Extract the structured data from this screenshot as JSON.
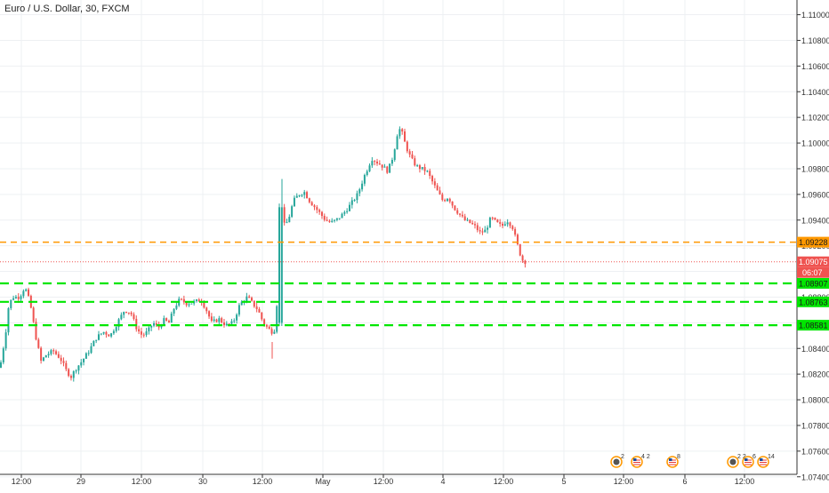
{
  "chart_data": {
    "type": "candlestick",
    "title": "Euro / U.S. Dollar, 30, FXCM",
    "colors": {
      "up": "#26a69a",
      "down": "#ef5350",
      "grid": "#eef0f3",
      "axis": "#333333"
    },
    "yticks": [
      "1.07400",
      "1.07600",
      "1.07800",
      "1.08000",
      "1.08200",
      "1.08400",
      "1.08600",
      "1.08800",
      "1.09000",
      "1.09200",
      "1.09400",
      "1.09600",
      "1.09800",
      "1.10000",
      "1.10200",
      "1.10400",
      "1.10600",
      "1.10800",
      "1.11000"
    ],
    "ylim": [
      1.0735,
      1.11
    ],
    "xticks": [
      {
        "label": "12:00",
        "px": 24
      },
      {
        "label": "29",
        "px": 91
      },
      {
        "label": "12:00",
        "px": 159
      },
      {
        "label": "30",
        "px": 228
      },
      {
        "label": "12:00",
        "px": 295
      },
      {
        "label": "May",
        "px": 363
      },
      {
        "label": "12:00",
        "px": 431
      },
      {
        "label": "4",
        "px": 498
      },
      {
        "label": "12:00",
        "px": 566
      },
      {
        "label": "5",
        "px": 634
      },
      {
        "label": "12:00",
        "px": 701
      },
      {
        "label": "6",
        "px": 770
      },
      {
        "label": "12:00",
        "px": 837
      }
    ],
    "levels": [
      {
        "value": 1.09228,
        "label": "1.09228",
        "style": "orange-dashed",
        "color": "#ff9800"
      },
      {
        "value": 1.09075,
        "label": "1.09075",
        "style": "red-dotted",
        "color": "#ef5350"
      },
      {
        "value": 1.08907,
        "label": "1.08907",
        "style": "green-dashed",
        "color": "#00e600"
      },
      {
        "value": 1.08763,
        "label": "1.08763",
        "style": "green-dashed",
        "color": "#00e600"
      },
      {
        "value": 1.08581,
        "label": "1.08581",
        "style": "green-dashed",
        "color": "#00e600"
      }
    ],
    "countdown": "06:07",
    "events": [
      {
        "type": "earnings",
        "count": "2",
        "px": 693
      },
      {
        "type": "us-flag",
        "count": "4 2",
        "px": 716
      },
      {
        "type": "us-flag",
        "count": "8",
        "px": 756
      },
      {
        "type": "earnings",
        "count": "2 2",
        "px": 824
      },
      {
        "type": "us-flag",
        "count": "6",
        "px": 841
      },
      {
        "type": "us-flag",
        "count": "14",
        "px": 858
      }
    ],
    "path": [
      [
        0,
        1.0825
      ],
      [
        6,
        1.085
      ],
      [
        10,
        1.0875
      ],
      [
        15,
        1.088
      ],
      [
        22,
        1.088
      ],
      [
        28,
        1.0888
      ],
      [
        34,
        1.0875
      ],
      [
        40,
        1.085
      ],
      [
        46,
        1.083
      ],
      [
        52,
        1.0835
      ],
      [
        60,
        1.0838
      ],
      [
        68,
        1.0832
      ],
      [
        75,
        1.0822
      ],
      [
        80,
        1.0818
      ],
      [
        85,
        1.0824
      ],
      [
        92,
        1.083
      ],
      [
        100,
        1.0838
      ],
      [
        108,
        1.0848
      ],
      [
        116,
        1.0853
      ],
      [
        124,
        1.085
      ],
      [
        132,
        1.086
      ],
      [
        140,
        1.087
      ],
      [
        147,
        1.0868
      ],
      [
        154,
        1.0855
      ],
      [
        160,
        1.085
      ],
      [
        166,
        1.0853
      ],
      [
        172,
        1.086
      ],
      [
        178,
        1.0856
      ],
      [
        184,
        1.0862
      ],
      [
        190,
        1.086
      ],
      [
        196,
        1.0872
      ],
      [
        202,
        1.0878
      ],
      [
        210,
        1.0875
      ],
      [
        218,
        1.0876
      ],
      [
        226,
        1.0878
      ],
      [
        232,
        1.087
      ],
      [
        238,
        1.086
      ],
      [
        246,
        1.0863
      ],
      [
        254,
        1.0858
      ],
      [
        262,
        1.086
      ],
      [
        270,
        1.0875
      ],
      [
        278,
        1.088
      ],
      [
        284,
        1.0875
      ],
      [
        290,
        1.087
      ],
      [
        296,
        1.086
      ],
      [
        302,
        1.0855
      ],
      [
        308,
        1.0852
      ],
      [
        312,
        1.088
      ],
      [
        316,
        1.095
      ],
      [
        320,
        1.0935
      ],
      [
        324,
        1.094
      ],
      [
        330,
        1.0955
      ],
      [
        336,
        1.096
      ],
      [
        342,
        1.0962
      ],
      [
        348,
        1.0955
      ],
      [
        354,
        1.095
      ],
      [
        360,
        1.0945
      ],
      [
        366,
        1.094
      ],
      [
        372,
        1.0938
      ],
      [
        378,
        1.094
      ],
      [
        386,
        1.0945
      ],
      [
        394,
        1.0952
      ],
      [
        402,
        1.096
      ],
      [
        410,
        1.0975
      ],
      [
        418,
        1.0988
      ],
      [
        424,
        1.0985
      ],
      [
        430,
        1.0982
      ],
      [
        436,
        1.0978
      ],
      [
        442,
        1.099
      ],
      [
        448,
        1.1012
      ],
      [
        452,
        1.1008
      ],
      [
        456,
        1.0998
      ],
      [
        462,
        1.0988
      ],
      [
        468,
        1.0982
      ],
      [
        474,
        1.098
      ],
      [
        480,
        1.0978
      ],
      [
        486,
        1.097
      ],
      [
        492,
        1.0962
      ],
      [
        498,
        1.0955
      ],
      [
        504,
        1.0958
      ],
      [
        510,
        1.095
      ],
      [
        516,
        1.0945
      ],
      [
        522,
        1.094
      ],
      [
        528,
        1.0938
      ],
      [
        534,
        1.0935
      ],
      [
        540,
        1.093
      ],
      [
        546,
        1.0932
      ],
      [
        552,
        1.0942
      ],
      [
        558,
        1.0938
      ],
      [
        564,
        1.0935
      ],
      [
        570,
        1.094
      ],
      [
        576,
        1.0935
      ],
      [
        580,
        1.0925
      ],
      [
        584,
        1.0915
      ],
      [
        588,
        1.0908
      ],
      [
        591,
        1.09075
      ]
    ]
  }
}
